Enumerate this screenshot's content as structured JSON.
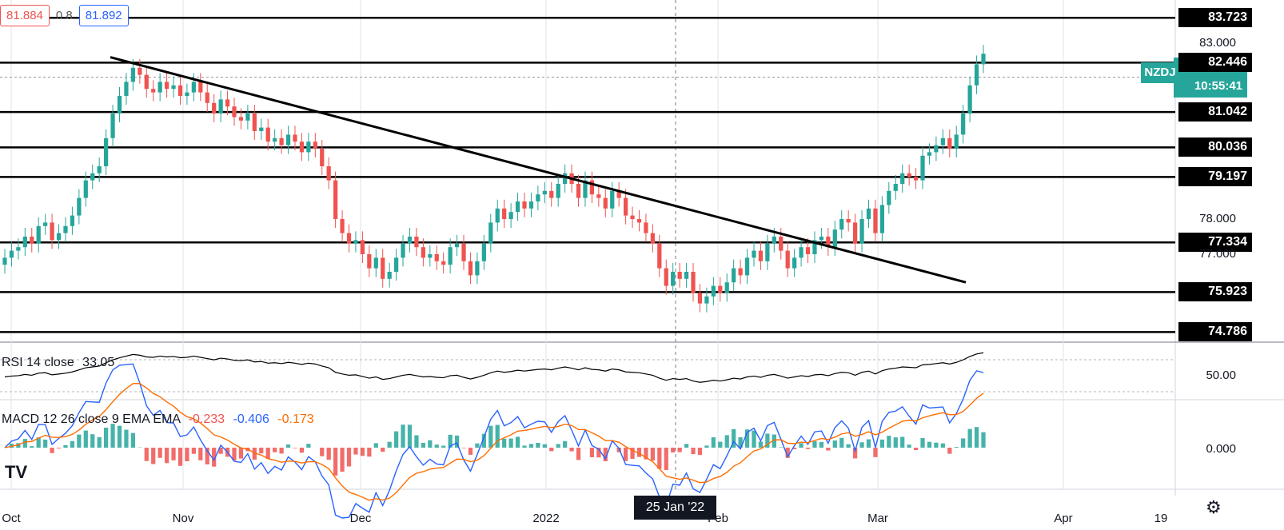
{
  "header": {
    "sell_price": "81.884",
    "spread": "0.8",
    "buy_price": "81.892"
  },
  "symbol_tag": "NZDJ",
  "last_price": "82.035",
  "countdown": "10:55:41",
  "price_axis_labels": [
    "83.000",
    "82.446",
    "78.000",
    "77.000",
    "75.923",
    "50.00",
    "0.000"
  ],
  "levels": [
    "83.723",
    "82.446",
    "81.042",
    "80.036",
    "79.197",
    "77.334",
    "75.923",
    "74.786"
  ],
  "level_values": [
    83.723,
    82.446,
    81.042,
    80.036,
    79.197,
    77.334,
    75.923,
    74.786
  ],
  "x_labels": [
    "Oct",
    "Nov",
    "Dec",
    "2022",
    "Feb",
    "Mar",
    "Apr",
    "19"
  ],
  "crosshair_date": "25 Jan '22",
  "rsi_label": "RSI 14 close",
  "rsi_value": "33.05",
  "macd_label": "MACD 12 26 close 9 EMA EMA",
  "macd_values": [
    "-0.233",
    "-0.406",
    "-0.173"
  ],
  "colors": {
    "up": "#26a69a",
    "down": "#ef5350",
    "macd": "#2962ff",
    "signal": "#ff6d00"
  },
  "chart_data": {
    "type": "candlestick",
    "ylim": [
      74.5,
      84.0
    ],
    "trendline": {
      "from": {
        "x": "2021-10-21",
        "y": 82.6
      },
      "to": {
        "x": "2022-03-17",
        "y": 76.2
      }
    },
    "closes": [
      76.9,
      77.1,
      77.2,
      77.5,
      77.3,
      77.8,
      77.9,
      77.4,
      77.6,
      77.8,
      78.1,
      78.6,
      79.1,
      79.3,
      79.5,
      80.3,
      81.0,
      81.5,
      81.9,
      82.3,
      82.1,
      81.7,
      81.6,
      81.9,
      81.7,
      81.8,
      81.5,
      81.6,
      81.9,
      81.6,
      81.3,
      81.0,
      81.4,
      81.2,
      80.9,
      80.8,
      81.0,
      80.5,
      80.6,
      80.2,
      80.3,
      80.1,
      80.4,
      80.2,
      79.9,
      80.2,
      80.0,
      79.5,
      79.1,
      78.0,
      77.6,
      77.3,
      77.4,
      77.0,
      76.6,
      76.9,
      76.3,
      76.5,
      76.9,
      77.3,
      77.5,
      77.2,
      76.9,
      77.0,
      76.8,
      76.7,
      77.2,
      77.3,
      76.8,
      76.4,
      76.8,
      77.3,
      77.9,
      78.3,
      78.0,
      78.2,
      78.5,
      78.3,
      78.5,
      78.7,
      78.8,
      78.6,
      79.0,
      79.3,
      79.0,
      78.6,
      79.1,
      78.7,
      78.6,
      78.3,
      78.8,
      78.6,
      78.1,
      78.0,
      77.9,
      77.6,
      77.3,
      76.6,
      76.1,
      76.5,
      76.3,
      76.5,
      75.9,
      75.6,
      75.8,
      76.1,
      75.9,
      76.2,
      76.6,
      76.4,
      76.9,
      77.1,
      76.8,
      77.3,
      77.5,
      77.1,
      76.6,
      76.9,
      77.2,
      77.0,
      77.4,
      77.5,
      77.2,
      77.7,
      78.0,
      77.9,
      77.3,
      78.0,
      78.3,
      77.6,
      78.4,
      78.8,
      79.0,
      79.3,
      79.2,
      79.1,
      79.8,
      79.9,
      80.1,
      80.3,
      80.0,
      80.4,
      81.0,
      81.8,
      82.4,
      82.7
    ]
  }
}
